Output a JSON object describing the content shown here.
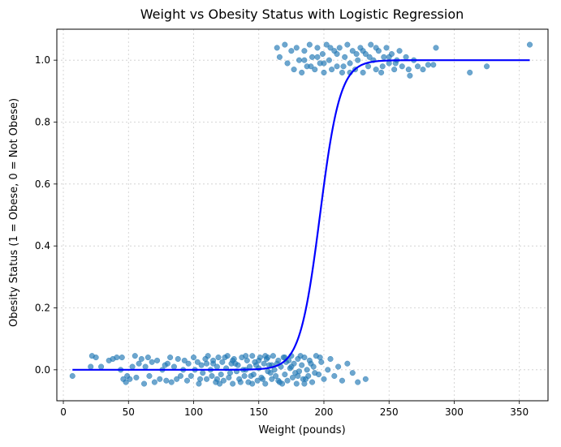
{
  "chart_data": {
    "type": "scatter",
    "title": "Weight vs Obesity Status with Logistic Regression",
    "xlabel": "Weight (pounds)",
    "ylabel": "Obesity Status (1 = Obese, 0 = Not Obese)",
    "xlim": [
      -5,
      372
    ],
    "ylim": [
      -0.1,
      1.1
    ],
    "xticks": [
      0,
      50,
      100,
      150,
      200,
      250,
      300,
      350
    ],
    "xtick_labels": [
      "0",
      "50",
      "100",
      "150",
      "200",
      "250",
      "300",
      "350"
    ],
    "yticks": [
      0.0,
      0.2,
      0.4,
      0.6,
      0.8,
      1.0
    ],
    "ytick_labels": [
      "0.0",
      "0.2",
      "0.4",
      "0.6",
      "0.8",
      "1.0"
    ],
    "grid": true,
    "legend": "none",
    "series": [
      {
        "kind": "scatter",
        "color": "#1f77b4",
        "points": [
          [
            7,
            -0.02
          ],
          [
            21,
            0.01
          ],
          [
            22,
            0.045
          ],
          [
            25,
            0.04
          ],
          [
            29,
            0.01
          ],
          [
            35,
            0.03
          ],
          [
            38,
            0.035
          ],
          [
            41,
            0.04
          ],
          [
            44,
            0.0
          ],
          [
            45,
            0.04
          ],
          [
            46,
            -0.03
          ],
          [
            48,
            -0.04
          ],
          [
            49,
            -0.02
          ],
          [
            51,
            -0.03
          ],
          [
            53,
            0.01
          ],
          [
            55,
            0.045
          ],
          [
            56,
            -0.025
          ],
          [
            58,
            0.02
          ],
          [
            60,
            0.035
          ],
          [
            62,
            -0.045
          ],
          [
            63,
            0.01
          ],
          [
            65,
            0.04
          ],
          [
            66,
            -0.02
          ],
          [
            68,
            0.025
          ],
          [
            70,
            -0.04
          ],
          [
            72,
            0.03
          ],
          [
            74,
            -0.03
          ],
          [
            76,
            0.0
          ],
          [
            78,
            0.015
          ],
          [
            79,
            -0.035
          ],
          [
            80,
            0.02
          ],
          [
            82,
            0.04
          ],
          [
            83,
            -0.04
          ],
          [
            85,
            0.01
          ],
          [
            87,
            -0.03
          ],
          [
            88,
            0.035
          ],
          [
            90,
            -0.02
          ],
          [
            92,
            0.0
          ],
          [
            93,
            0.03
          ],
          [
            95,
            -0.035
          ],
          [
            96,
            0.02
          ],
          [
            98,
            -0.02
          ],
          [
            100,
            0.04
          ],
          [
            101,
            0.0
          ],
          [
            103,
            0.025
          ],
          [
            104,
            -0.045
          ],
          [
            106,
            0.015
          ],
          [
            107,
            -0.01
          ],
          [
            109,
            0.035
          ],
          [
            110,
            -0.03
          ],
          [
            111,
            0.045
          ],
          [
            113,
            0.0
          ],
          [
            114,
            -0.02
          ],
          [
            115,
            0.03
          ],
          [
            117,
            -0.04
          ],
          [
            118,
            0.01
          ],
          [
            119,
            0.04
          ],
          [
            121,
            -0.015
          ],
          [
            122,
            0.025
          ],
          [
            123,
            -0.035
          ],
          [
            125,
            0.005
          ],
          [
            126,
            0.045
          ],
          [
            127,
            -0.025
          ],
          [
            129,
            0.02
          ],
          [
            130,
            -0.045
          ],
          [
            131,
            0.035
          ],
          [
            133,
            -0.005
          ],
          [
            134,
            0.015
          ],
          [
            135,
            -0.03
          ],
          [
            137,
            0.04
          ],
          [
            138,
            0.0
          ],
          [
            139,
            -0.02
          ],
          [
            141,
            0.03
          ],
          [
            142,
            -0.04
          ],
          [
            143,
            0.01
          ],
          [
            145,
            0.045
          ],
          [
            146,
            -0.015
          ],
          [
            147,
            0.025
          ],
          [
            149,
            -0.035
          ],
          [
            150,
            0.005
          ],
          [
            151,
            0.04
          ],
          [
            152,
            -0.025
          ],
          [
            154,
            0.02
          ],
          [
            155,
            -0.045
          ],
          [
            156,
            0.035
          ],
          [
            157,
            -0.005
          ],
          [
            158,
            0.015
          ],
          [
            160,
            -0.03
          ],
          [
            161,
            0.045
          ],
          [
            162,
            0.0
          ],
          [
            163,
            -0.02
          ],
          [
            165,
            0.03
          ],
          [
            166,
            -0.04
          ],
          [
            167,
            0.01
          ],
          [
            169,
            0.04
          ],
          [
            170,
            -0.015
          ],
          [
            171,
            0.025
          ],
          [
            172,
            -0.035
          ],
          [
            174,
            0.005
          ],
          [
            175,
            0.045
          ],
          [
            176,
            -0.025
          ],
          [
            177,
            0.02
          ],
          [
            179,
            -0.045
          ],
          [
            180,
            0.035
          ],
          [
            181,
            -0.005
          ],
          [
            183,
            0.015
          ],
          [
            184,
            -0.03
          ],
          [
            185,
            0.04
          ],
          [
            187,
            0.0
          ],
          [
            188,
            -0.02
          ],
          [
            189,
            0.03
          ],
          [
            191,
            -0.04
          ],
          [
            192,
            0.01
          ],
          [
            194,
            0.045
          ],
          [
            196,
            -0.015
          ],
          [
            198,
            0.025
          ],
          [
            200,
            -0.03
          ],
          [
            203,
            0.0
          ],
          [
            205,
            0.035
          ],
          [
            208,
            -0.02
          ],
          [
            211,
            0.01
          ],
          [
            214,
            -0.035
          ],
          [
            218,
            0.02
          ],
          [
            222,
            -0.01
          ],
          [
            226,
            -0.04
          ],
          [
            232,
            -0.03
          ],
          [
            115,
            0.02
          ],
          [
            118,
            -0.03
          ],
          [
            124,
            0.04
          ],
          [
            128,
            -0.01
          ],
          [
            132,
            0.02
          ],
          [
            136,
            -0.04
          ],
          [
            140,
            0.045
          ],
          [
            144,
            -0.02
          ],
          [
            148,
            0.015
          ],
          [
            153,
            -0.03
          ],
          [
            157,
            0.04
          ],
          [
            159,
            -0.01
          ],
          [
            164,
            0.02
          ],
          [
            168,
            -0.045
          ],
          [
            173,
            0.03
          ],
          [
            178,
            -0.01
          ],
          [
            182,
            0.045
          ],
          [
            186,
            -0.03
          ],
          [
            190,
            0.02
          ],
          [
            193,
            -0.01
          ],
          [
            197,
            0.04
          ],
          [
            140,
            0.0
          ],
          [
            150,
            0.03
          ],
          [
            160,
            0.015
          ],
          [
            170,
            0.04
          ],
          [
            180,
            -0.02
          ],
          [
            120,
            -0.045
          ],
          [
            130,
            0.03
          ],
          [
            110,
            0.02
          ],
          [
            105,
            -0.03
          ],
          [
            145,
            -0.045
          ],
          [
            155,
            0.045
          ],
          [
            165,
            -0.035
          ],
          [
            175,
            0.01
          ],
          [
            185,
            -0.045
          ],
          [
            164,
            1.04
          ],
          [
            166,
            1.01
          ],
          [
            170,
            1.05
          ],
          [
            172,
            0.99
          ],
          [
            175,
            1.03
          ],
          [
            177,
            0.97
          ],
          [
            179,
            1.04
          ],
          [
            181,
            1.0
          ],
          [
            183,
            0.96
          ],
          [
            185,
            1.03
          ],
          [
            187,
            0.98
          ],
          [
            189,
            1.05
          ],
          [
            191,
            1.01
          ],
          [
            193,
            0.97
          ],
          [
            195,
            1.04
          ],
          [
            197,
            0.99
          ],
          [
            199,
            1.02
          ],
          [
            200,
            0.96
          ],
          [
            202,
            1.05
          ],
          [
            204,
            1.0
          ],
          [
            206,
            0.97
          ],
          [
            208,
            1.03
          ],
          [
            210,
            0.98
          ],
          [
            212,
            1.04
          ],
          [
            214,
            0.96
          ],
          [
            216,
            1.01
          ],
          [
            218,
            1.05
          ],
          [
            220,
            0.99
          ],
          [
            222,
            1.03
          ],
          [
            224,
            0.97
          ],
          [
            226,
            1.0
          ],
          [
            228,
            1.04
          ],
          [
            230,
            0.96
          ],
          [
            232,
            1.02
          ],
          [
            234,
            0.98
          ],
          [
            236,
            1.05
          ],
          [
            238,
            1.0
          ],
          [
            240,
            0.97
          ],
          [
            242,
            1.03
          ],
          [
            244,
            0.96
          ],
          [
            246,
            1.01
          ],
          [
            248,
            1.04
          ],
          [
            250,
            0.99
          ],
          [
            252,
            1.02
          ],
          [
            254,
            0.97
          ],
          [
            256,
            1.0
          ],
          [
            258,
            1.03
          ],
          [
            260,
            0.98
          ],
          [
            263,
            1.01
          ],
          [
            266,
            0.95
          ],
          [
            269,
            1.0
          ],
          [
            272,
            0.98
          ],
          [
            276,
            0.97
          ],
          [
            280,
            0.985
          ],
          [
            284,
            0.985
          ],
          [
            286,
            1.04
          ],
          [
            312,
            0.96
          ],
          [
            325,
            0.98
          ],
          [
            358,
            1.05
          ],
          [
            195,
            1.01
          ],
          [
            205,
            1.04
          ],
          [
            215,
            0.98
          ],
          [
            225,
            1.02
          ],
          [
            235,
            1.01
          ],
          [
            245,
            0.98
          ],
          [
            200,
            0.99
          ],
          [
            210,
            1.02
          ],
          [
            220,
            0.96
          ],
          [
            230,
            1.03
          ],
          [
            240,
            1.04
          ],
          [
            250,
            1.01
          ],
          [
            185,
            1.0
          ],
          [
            190,
            0.98
          ],
          [
            255,
            0.99
          ],
          [
            265,
            0.97
          ]
        ]
      },
      {
        "kind": "line",
        "name": "",
        "color": "#0000ff",
        "model": "logistic",
        "x_range": [
          7,
          358
        ],
        "midpoint": 197,
        "slope": 0.13
      }
    ]
  }
}
